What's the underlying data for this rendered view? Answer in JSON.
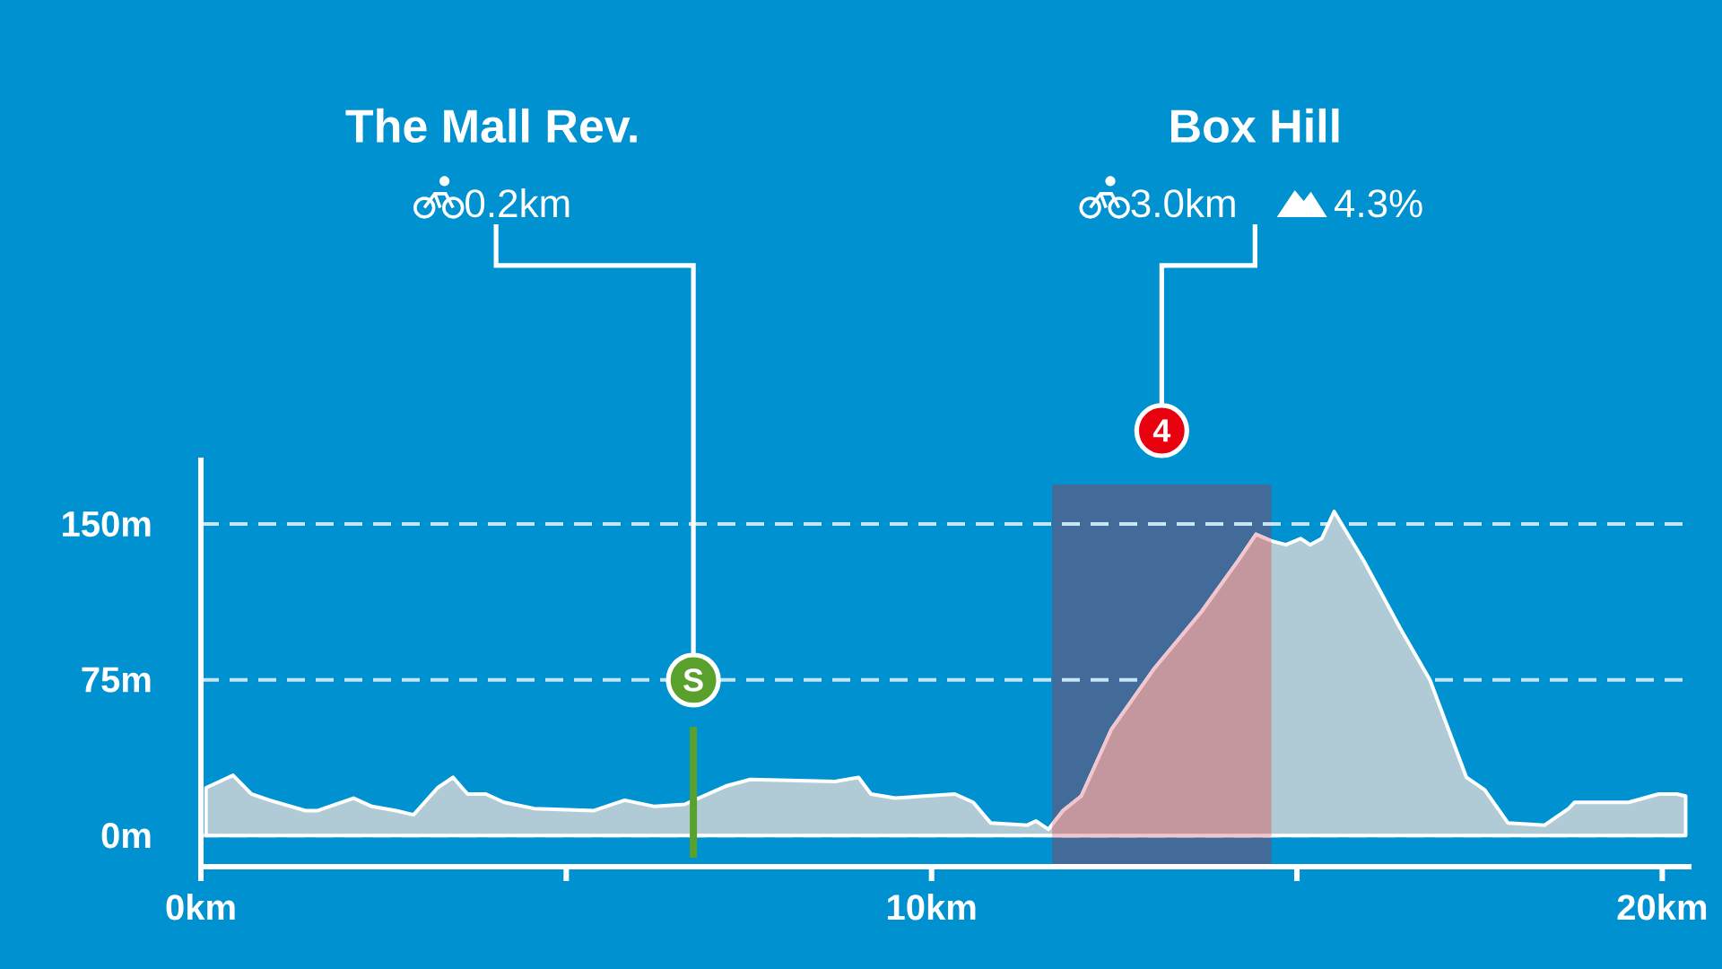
{
  "chart_data": {
    "type": "area",
    "color": "#b0cbd6",
    "x": [
      0.07,
      0.44,
      0.69,
      0.94,
      1.43,
      1.6,
      2.09,
      2.34,
      2.67,
      2.91,
      3.24,
      3.45,
      3.65,
      3.9,
      4.15,
      4.56,
      5.38,
      5.8,
      6.21,
      6.62,
      7.2,
      7.52,
      8.68,
      9.0,
      9.17,
      9.5,
      10.32,
      10.57,
      10.81,
      11.31,
      11.43,
      11.6,
      11.8,
      12.05,
      12.46,
      13.04,
      13.7,
      14.19,
      14.44,
      14.64,
      14.85,
      15.05,
      15.18,
      15.34,
      15.51,
      15.92,
      16.41,
      16.82,
      17.32,
      17.57,
      17.89,
      18.39,
      18.72,
      18.8,
      19.54,
      19.95,
      20.2,
      20.32
    ],
    "values": [
      23,
      29,
      20,
      17,
      12,
      12,
      18,
      14,
      12,
      10,
      23,
      28,
      20,
      20,
      16,
      13,
      12,
      17,
      14,
      15,
      24,
      27,
      26,
      28,
      20,
      18,
      20,
      16,
      6,
      5,
      7,
      3,
      12,
      19,
      51,
      80,
      108,
      132,
      145,
      142,
      140,
      143,
      140,
      143,
      156,
      132,
      100,
      75,
      28,
      22,
      6,
      5,
      13,
      16,
      16,
      20,
      20,
      19
    ],
    "xlim": [
      0,
      20.4
    ],
    "ylim": [
      -15,
      182
    ],
    "xticks": [
      {
        "value": 0,
        "label": "0km"
      },
      {
        "value": 5,
        "label": null
      },
      {
        "value": 10,
        "label": "10km"
      },
      {
        "value": 15,
        "label": null
      },
      {
        "value": 20,
        "label": "20km"
      }
    ],
    "yticks": [
      {
        "value": 0,
        "label": "0m"
      },
      {
        "value": 75,
        "label": "75m"
      },
      {
        "value": 150,
        "label": "150m"
      }
    ],
    "grid": "y",
    "ref_lines": [
      {
        "axis": "x",
        "value": 6.74,
        "label": "S",
        "color": "#5aa02c"
      }
    ],
    "bands": [
      {
        "axis": "x",
        "from": 11.65,
        "to": 14.65,
        "label": "4",
        "color": "#426b9a"
      }
    ],
    "annotations": [
      "The Mall Rev.",
      "0.2km",
      "Box Hill",
      "3.0km",
      "4.3%"
    ]
  }
}
